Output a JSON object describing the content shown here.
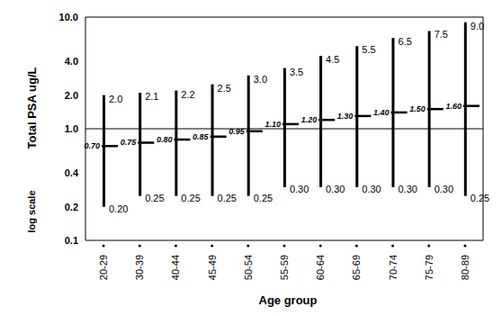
{
  "chart_data": {
    "type": "range",
    "categories": [
      "20-29",
      "30-39",
      "40-44",
      "45-49",
      "50-54",
      "55-59",
      "60-64",
      "65-69",
      "70-74",
      "75-79",
      "80-89"
    ],
    "low": [
      0.2,
      0.25,
      0.25,
      0.25,
      0.25,
      0.3,
      0.3,
      0.3,
      0.3,
      0.3,
      0.25
    ],
    "low_labels": [
      "0.20",
      "0.25",
      "0.25",
      "0.25",
      "0.25",
      "0.30",
      "0.30",
      "0.30",
      "0.30",
      "0.30",
      "0.25"
    ],
    "median": [
      0.7,
      0.75,
      0.8,
      0.85,
      0.95,
      1.1,
      1.2,
      1.3,
      1.4,
      1.5,
      1.6
    ],
    "median_labels": [
      "0.70",
      "0.75",
      "0.80",
      "0.85",
      "0.95",
      "1.10",
      "1.20",
      "1.30",
      "1.40",
      "1.50",
      "1.60"
    ],
    "high": [
      2.0,
      2.1,
      2.2,
      2.5,
      3.0,
      3.5,
      4.5,
      5.5,
      6.5,
      7.5,
      9.0
    ],
    "high_labels": [
      "2.0",
      "2.1",
      "2.2",
      "2.5",
      "3.0",
      "3.5",
      "4.5",
      "5.5",
      "6.5",
      "7.5",
      "9.0"
    ],
    "ylim": [
      0.1,
      10
    ],
    "yticks": [
      0.1,
      0.2,
      0.4,
      {
        "value": 1,
        "label": "1.0"
      },
      {
        "value": 2,
        "label": "2.0"
      },
      {
        "value": 4,
        "label": "4.0"
      },
      {
        "value": 10,
        "label": "10.0"
      }
    ],
    "log": "y",
    "ylabel": "Total PSA ug/L",
    "xlabel": "Age group",
    "annotations": [
      "log scale"
    ],
    "reference_line": {
      "value": 1
    },
    "color": "#000000",
    "data_labels": true
  }
}
